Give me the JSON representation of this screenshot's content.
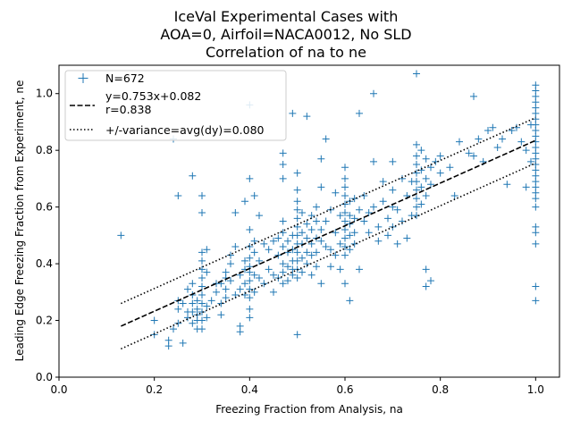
{
  "chart_data": {
    "type": "scatter",
    "title_lines": [
      "IceVal Experimental Cases with",
      "AOA=0, Airfoil=NACA0012, No SLD",
      "Correlation of na to ne"
    ],
    "xlabel": "Freezing Fraction from Analysis, na",
    "ylabel": "Leading Edge Freezing Fraction from Experiment, ne",
    "xlim": [
      0.0,
      1.05
    ],
    "ylim": [
      0.0,
      1.1
    ],
    "xticks": [
      "0.0",
      "0.2",
      "0.4",
      "0.6",
      "0.8",
      "1.0"
    ],
    "yticks": [
      "0.0",
      "0.2",
      "0.4",
      "0.6",
      "0.8",
      "1.0"
    ],
    "grid": false,
    "legend_position": "upper-left",
    "colors": {
      "scatter": "#1f77b4",
      "fit": "#000000",
      "band": "#000000"
    },
    "series": [
      {
        "name": "N=672",
        "marker": "plus",
        "points": [
          [
            0.13,
            0.5
          ],
          [
            0.2,
            0.2
          ],
          [
            0.2,
            0.15
          ],
          [
            0.23,
            0.13
          ],
          [
            0.23,
            0.11
          ],
          [
            0.24,
            0.17
          ],
          [
            0.24,
            0.84
          ],
          [
            0.25,
            0.64
          ],
          [
            0.25,
            0.27
          ],
          [
            0.25,
            0.24
          ],
          [
            0.25,
            0.19
          ],
          [
            0.26,
            0.26
          ],
          [
            0.26,
            0.12
          ],
          [
            0.27,
            0.23
          ],
          [
            0.27,
            0.31
          ],
          [
            0.27,
            0.21
          ],
          [
            0.28,
            0.71
          ],
          [
            0.28,
            0.33
          ],
          [
            0.28,
            0.29
          ],
          [
            0.28,
            0.26
          ],
          [
            0.28,
            0.23
          ],
          [
            0.28,
            0.19
          ],
          [
            0.29,
            0.27
          ],
          [
            0.29,
            0.24
          ],
          [
            0.29,
            0.22
          ],
          [
            0.29,
            0.2
          ],
          [
            0.29,
            0.17
          ],
          [
            0.3,
            0.64
          ],
          [
            0.3,
            0.58
          ],
          [
            0.3,
            0.44
          ],
          [
            0.3,
            0.41
          ],
          [
            0.3,
            0.38
          ],
          [
            0.3,
            0.35
          ],
          [
            0.3,
            0.32
          ],
          [
            0.3,
            0.29
          ],
          [
            0.3,
            0.26
          ],
          [
            0.3,
            0.23
          ],
          [
            0.3,
            0.2
          ],
          [
            0.3,
            0.17
          ],
          [
            0.31,
            0.45
          ],
          [
            0.31,
            0.37
          ],
          [
            0.31,
            0.25
          ],
          [
            0.31,
            0.21
          ],
          [
            0.32,
            0.27
          ],
          [
            0.33,
            0.33
          ],
          [
            0.33,
            0.3
          ],
          [
            0.34,
            0.26
          ],
          [
            0.34,
            0.33
          ],
          [
            0.34,
            0.22
          ],
          [
            0.35,
            0.37
          ],
          [
            0.35,
            0.35
          ],
          [
            0.35,
            0.31
          ],
          [
            0.35,
            0.28
          ],
          [
            0.36,
            0.43
          ],
          [
            0.36,
            0.4
          ],
          [
            0.36,
            0.34
          ],
          [
            0.37,
            0.58
          ],
          [
            0.37,
            0.46
          ],
          [
            0.37,
            0.29
          ],
          [
            0.38,
            0.16
          ],
          [
            0.38,
            0.18
          ],
          [
            0.38,
            0.36
          ],
          [
            0.38,
            0.31
          ],
          [
            0.39,
            0.62
          ],
          [
            0.39,
            0.41
          ],
          [
            0.39,
            0.38
          ],
          [
            0.39,
            0.33
          ],
          [
            0.39,
            0.29
          ],
          [
            0.4,
            0.96
          ],
          [
            0.4,
            0.7
          ],
          [
            0.4,
            0.52
          ],
          [
            0.4,
            0.46
          ],
          [
            0.4,
            0.42
          ],
          [
            0.4,
            0.39
          ],
          [
            0.4,
            0.37
          ],
          [
            0.4,
            0.34
          ],
          [
            0.4,
            0.31
          ],
          [
            0.4,
            0.28
          ],
          [
            0.4,
            0.24
          ],
          [
            0.4,
            0.21
          ],
          [
            0.41,
            0.64
          ],
          [
            0.41,
            0.48
          ],
          [
            0.41,
            0.44
          ],
          [
            0.41,
            0.36
          ],
          [
            0.41,
            0.3
          ],
          [
            0.42,
            0.57
          ],
          [
            0.42,
            0.41
          ],
          [
            0.42,
            0.35
          ],
          [
            0.43,
            0.47
          ],
          [
            0.43,
            0.33
          ],
          [
            0.44,
            0.45
          ],
          [
            0.44,
            0.38
          ],
          [
            0.45,
            0.48
          ],
          [
            0.45,
            0.36
          ],
          [
            0.45,
            0.3
          ],
          [
            0.46,
            0.49
          ],
          [
            0.46,
            0.43
          ],
          [
            0.46,
            0.35
          ],
          [
            0.47,
            0.79
          ],
          [
            0.47,
            0.75
          ],
          [
            0.47,
            0.7
          ],
          [
            0.47,
            0.55
          ],
          [
            0.47,
            0.51
          ],
          [
            0.47,
            0.46
          ],
          [
            0.47,
            0.4
          ],
          [
            0.47,
            0.37
          ],
          [
            0.47,
            0.33
          ],
          [
            0.48,
            0.48
          ],
          [
            0.48,
            0.44
          ],
          [
            0.48,
            0.39
          ],
          [
            0.48,
            0.34
          ],
          [
            0.49,
            0.93
          ],
          [
            0.49,
            0.5
          ],
          [
            0.49,
            0.45
          ],
          [
            0.49,
            0.41
          ],
          [
            0.49,
            0.38
          ],
          [
            0.49,
            0.36
          ],
          [
            0.5,
            0.72
          ],
          [
            0.5,
            0.66
          ],
          [
            0.5,
            0.62
          ],
          [
            0.5,
            0.59
          ],
          [
            0.5,
            0.56
          ],
          [
            0.5,
            0.53
          ],
          [
            0.5,
            0.5
          ],
          [
            0.5,
            0.47
          ],
          [
            0.5,
            0.44
          ],
          [
            0.5,
            0.41
          ],
          [
            0.5,
            0.38
          ],
          [
            0.5,
            0.35
          ],
          [
            0.5,
            0.15
          ],
          [
            0.51,
            0.58
          ],
          [
            0.51,
            0.51
          ],
          [
            0.51,
            0.47
          ],
          [
            0.51,
            0.42
          ],
          [
            0.51,
            0.37
          ],
          [
            0.52,
            0.92
          ],
          [
            0.52,
            0.54
          ],
          [
            0.52,
            0.49
          ],
          [
            0.52,
            0.44
          ],
          [
            0.52,
            0.4
          ],
          [
            0.53,
            0.57
          ],
          [
            0.53,
            0.52
          ],
          [
            0.53,
            0.47
          ],
          [
            0.53,
            0.43
          ],
          [
            0.53,
            0.36
          ],
          [
            0.54,
            0.6
          ],
          [
            0.54,
            0.55
          ],
          [
            0.54,
            0.49
          ],
          [
            0.54,
            0.44
          ],
          [
            0.54,
            0.39
          ],
          [
            0.55,
            0.77
          ],
          [
            0.55,
            0.67
          ],
          [
            0.55,
            0.52
          ],
          [
            0.55,
            0.48
          ],
          [
            0.55,
            0.33
          ],
          [
            0.56,
            0.84
          ],
          [
            0.56,
            0.55
          ],
          [
            0.56,
            0.46
          ],
          [
            0.57,
            0.59
          ],
          [
            0.57,
            0.45
          ],
          [
            0.57,
            0.39
          ],
          [
            0.58,
            0.65
          ],
          [
            0.58,
            0.51
          ],
          [
            0.58,
            0.43
          ],
          [
            0.59,
            0.38
          ],
          [
            0.59,
            0.57
          ],
          [
            0.59,
            0.47
          ],
          [
            0.6,
            0.74
          ],
          [
            0.6,
            0.7
          ],
          [
            0.6,
            0.67
          ],
          [
            0.6,
            0.64
          ],
          [
            0.6,
            0.61
          ],
          [
            0.6,
            0.58
          ],
          [
            0.6,
            0.55
          ],
          [
            0.6,
            0.52
          ],
          [
            0.6,
            0.49
          ],
          [
            0.6,
            0.46
          ],
          [
            0.6,
            0.43
          ],
          [
            0.6,
            0.33
          ],
          [
            0.61,
            0.62
          ],
          [
            0.61,
            0.57
          ],
          [
            0.61,
            0.54
          ],
          [
            0.61,
            0.5
          ],
          [
            0.61,
            0.45
          ],
          [
            0.61,
            0.27
          ],
          [
            0.62,
            0.63
          ],
          [
            0.62,
            0.56
          ],
          [
            0.62,
            0.51
          ],
          [
            0.62,
            0.47
          ],
          [
            0.63,
            0.93
          ],
          [
            0.63,
            0.59
          ],
          [
            0.63,
            0.38
          ],
          [
            0.64,
            0.64
          ],
          [
            0.64,
            0.55
          ],
          [
            0.65,
            0.58
          ],
          [
            0.65,
            0.51
          ],
          [
            0.66,
            1.0
          ],
          [
            0.66,
            0.76
          ],
          [
            0.66,
            0.6
          ],
          [
            0.67,
            0.53
          ],
          [
            0.67,
            0.48
          ],
          [
            0.68,
            0.69
          ],
          [
            0.68,
            0.62
          ],
          [
            0.69,
            0.56
          ],
          [
            0.69,
            0.5
          ],
          [
            0.7,
            0.76
          ],
          [
            0.7,
            0.66
          ],
          [
            0.7,
            0.6
          ],
          [
            0.7,
            0.53
          ],
          [
            0.71,
            0.47
          ],
          [
            0.71,
            0.59
          ],
          [
            0.72,
            0.7
          ],
          [
            0.72,
            0.55
          ],
          [
            0.73,
            0.64
          ],
          [
            0.73,
            0.49
          ],
          [
            0.74,
            0.69
          ],
          [
            0.74,
            0.57
          ],
          [
            0.75,
            1.07
          ],
          [
            0.75,
            0.82
          ],
          [
            0.75,
            0.78
          ],
          [
            0.75,
            0.75
          ],
          [
            0.75,
            0.72
          ],
          [
            0.75,
            0.69
          ],
          [
            0.75,
            0.66
          ],
          [
            0.75,
            0.63
          ],
          [
            0.75,
            0.6
          ],
          [
            0.75,
            0.57
          ],
          [
            0.76,
            0.8
          ],
          [
            0.76,
            0.73
          ],
          [
            0.76,
            0.67
          ],
          [
            0.76,
            0.61
          ],
          [
            0.77,
            0.77
          ],
          [
            0.77,
            0.7
          ],
          [
            0.77,
            0.64
          ],
          [
            0.77,
            0.38
          ],
          [
            0.77,
            0.32
          ],
          [
            0.78,
            0.74
          ],
          [
            0.78,
            0.68
          ],
          [
            0.78,
            0.34
          ],
          [
            0.79,
            0.76
          ],
          [
            0.8,
            0.72
          ],
          [
            0.8,
            0.78
          ],
          [
            0.82,
            0.74
          ],
          [
            0.83,
            0.64
          ],
          [
            0.84,
            0.83
          ],
          [
            0.86,
            0.79
          ],
          [
            0.87,
            0.99
          ],
          [
            0.87,
            0.78
          ],
          [
            0.88,
            0.84
          ],
          [
            0.89,
            0.76
          ],
          [
            0.9,
            0.87
          ],
          [
            0.91,
            0.88
          ],
          [
            0.92,
            0.81
          ],
          [
            0.93,
            0.84
          ],
          [
            0.94,
            0.68
          ],
          [
            0.95,
            0.87
          ],
          [
            0.96,
            0.88
          ],
          [
            0.97,
            0.83
          ],
          [
            0.98,
            0.8
          ],
          [
            0.98,
            0.67
          ],
          [
            0.99,
            0.89
          ],
          [
            0.99,
            0.76
          ],
          [
            1.0,
            1.03
          ],
          [
            1.0,
            1.01
          ],
          [
            1.0,
            0.99
          ],
          [
            1.0,
            0.97
          ],
          [
            1.0,
            0.95
          ],
          [
            1.0,
            0.93
          ],
          [
            1.0,
            0.91
          ],
          [
            1.0,
            0.89
          ],
          [
            1.0,
            0.87
          ],
          [
            1.0,
            0.85
          ],
          [
            1.0,
            0.83
          ],
          [
            1.0,
            0.81
          ],
          [
            1.0,
            0.79
          ],
          [
            1.0,
            0.77
          ],
          [
            1.0,
            0.75
          ],
          [
            1.0,
            0.73
          ],
          [
            1.0,
            0.71
          ],
          [
            1.0,
            0.69
          ],
          [
            1.0,
            0.67
          ],
          [
            1.0,
            0.65
          ],
          [
            1.0,
            0.63
          ],
          [
            1.0,
            0.6
          ],
          [
            1.0,
            0.53
          ],
          [
            1.0,
            0.51
          ],
          [
            1.0,
            0.47
          ],
          [
            1.0,
            0.32
          ],
          [
            1.0,
            0.27
          ]
        ]
      },
      {
        "name": "y=0.753x+0.082\nr=0.838",
        "type": "line",
        "style": "dashed",
        "slope": 0.753,
        "intercept": 0.082,
        "x_range": [
          0.13,
          1.0
        ]
      },
      {
        "name": "+/-variance=avg(dy)=0.080",
        "type": "band",
        "style": "dotted",
        "slope": 0.753,
        "intercept": 0.082,
        "offset": 0.08,
        "x_range": [
          0.13,
          1.0
        ]
      }
    ]
  }
}
